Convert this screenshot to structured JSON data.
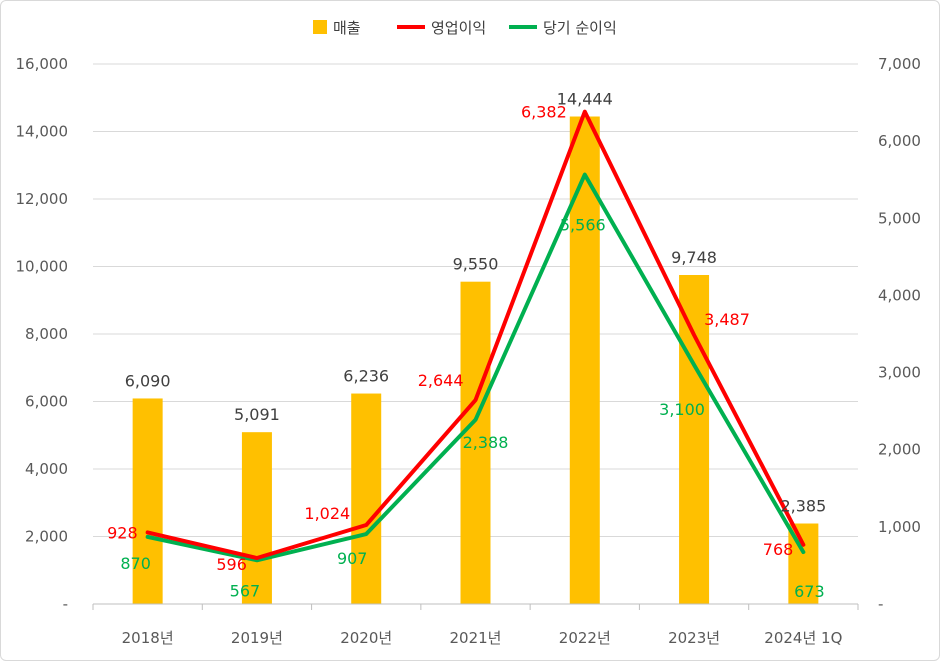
{
  "chart_data": {
    "type": "bar",
    "categories": [
      "2018년",
      "2019년",
      "2020년",
      "2021년",
      "2022년",
      "2023년",
      "2024년 1Q"
    ],
    "series": [
      {
        "name": "매출",
        "type": "bar",
        "axis": "left",
        "color": "#ffc000",
        "values": [
          6090,
          5091,
          6236,
          9550,
          14444,
          9748,
          2385
        ],
        "labels": [
          "6,090",
          "5,091",
          "6,236",
          "9,550",
          "14,444",
          "9,748",
          "2,385"
        ]
      },
      {
        "name": "영업이익",
        "type": "line",
        "axis": "right",
        "color": "#ff0000",
        "values": [
          928,
          596,
          1024,
          2644,
          6382,
          3487,
          768
        ],
        "labels": [
          "928",
          "596",
          "1,024",
          "2,644",
          "6,382",
          "3,487",
          "768"
        ]
      },
      {
        "name": "당기 순이익",
        "type": "line",
        "axis": "right",
        "color": "#00b050",
        "values": [
          870,
          567,
          907,
          2388,
          5566,
          3100,
          673
        ],
        "labels": [
          "870",
          "567",
          "907",
          "2,388",
          "5,566",
          "3,100",
          "673"
        ]
      }
    ],
    "left_axis": {
      "ylim": [
        0,
        16000
      ],
      "ticks": [
        "-",
        "2,000",
        "4,000",
        "6,000",
        "8,000",
        "10,000",
        "12,000",
        "14,000",
        "16,000"
      ]
    },
    "right_axis": {
      "ylim": [
        0,
        7000
      ],
      "ticks": [
        "-",
        "1,000",
        "2,000",
        "3,000",
        "4,000",
        "5,000",
        "6,000",
        "7,000"
      ]
    },
    "grid": true,
    "legend_position": "top"
  }
}
